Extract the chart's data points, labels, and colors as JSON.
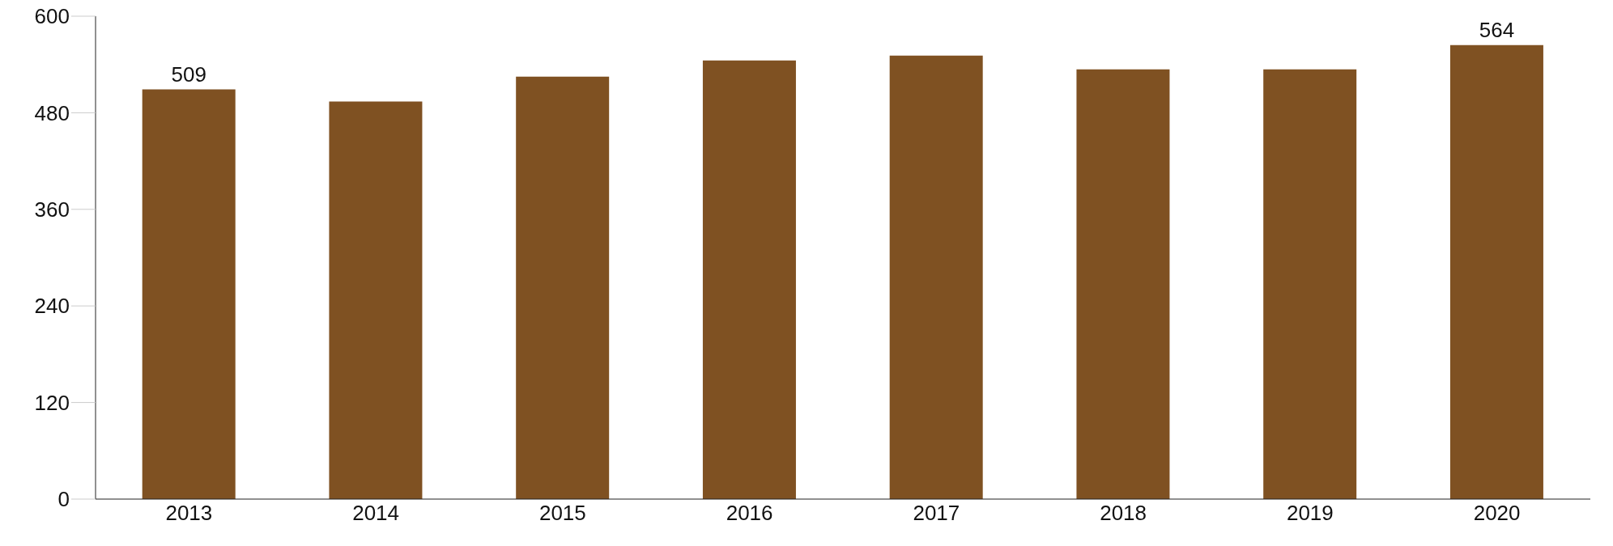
{
  "chart_data": {
    "type": "bar",
    "categories": [
      "2013",
      "2014",
      "2015",
      "2016",
      "2017",
      "2018",
      "2019",
      "2020"
    ],
    "values": [
      509,
      494,
      525,
      545,
      551,
      534,
      534,
      564
    ],
    "value_labels": [
      "509",
      null,
      null,
      null,
      null,
      null,
      null,
      "564"
    ],
    "color": "#7f5122",
    "ylim": [
      0,
      600
    ],
    "yticks": [
      0,
      120,
      240,
      360,
      480,
      600
    ],
    "grid": false,
    "legend": false
  }
}
